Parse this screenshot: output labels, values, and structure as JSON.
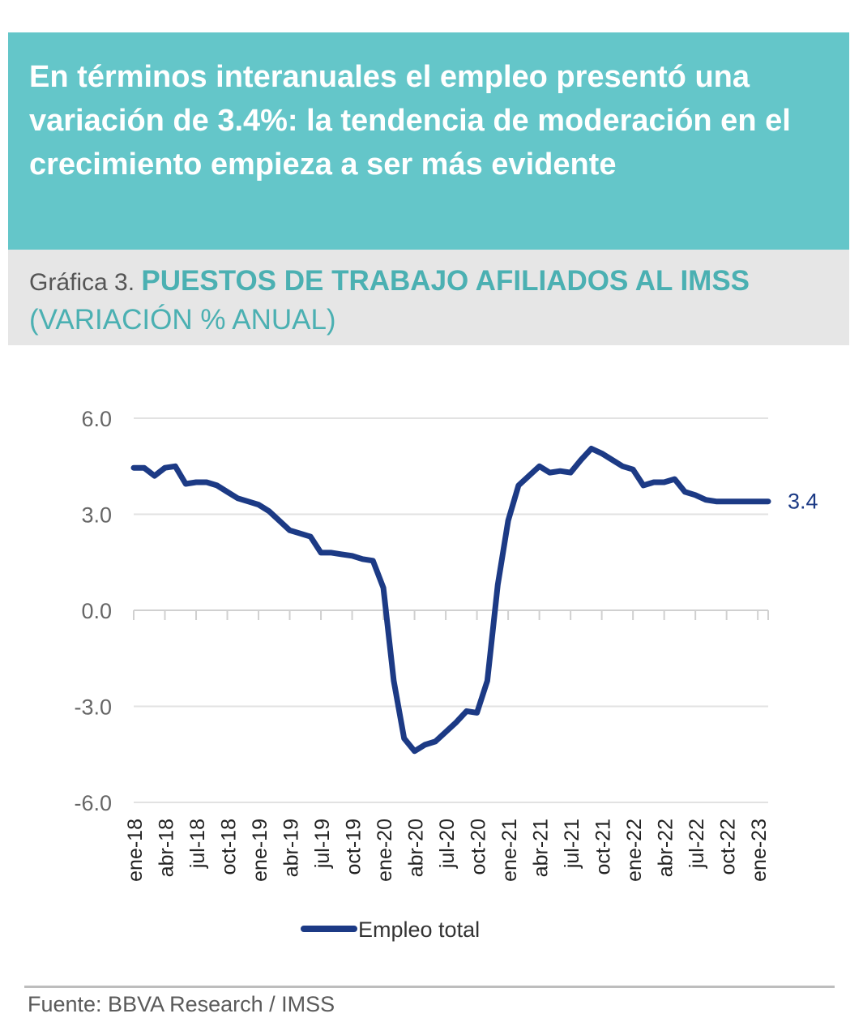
{
  "header": {
    "text": "En términos interanuales el empleo presentó una variación de 3.4%: la tendencia de moderación en el crecimiento empieza a ser más evidente"
  },
  "subtitle": {
    "prefix": "Gráfica 3. ",
    "title": "PUESTOS DE TRABAJO AFILIADOS AL IMSS",
    "suffix": " (VARIACIÓN % ANUAL)"
  },
  "colors": {
    "header_bg": "#64c6c9",
    "subtitle_bg": "#e6e6e6",
    "accent_text": "#4bb0b2",
    "line": "#1c3a85"
  },
  "chart_data": {
    "type": "line",
    "categories": [
      "ene-18",
      "feb-18",
      "mar-18",
      "abr-18",
      "may-18",
      "jun-18",
      "jul-18",
      "ago-18",
      "sep-18",
      "oct-18",
      "nov-18",
      "dic-18",
      "ene-19",
      "feb-19",
      "mar-19",
      "abr-19",
      "may-19",
      "jun-19",
      "jul-19",
      "ago-19",
      "sep-19",
      "oct-19",
      "nov-19",
      "dic-19",
      "ene-20",
      "feb-20",
      "mar-20",
      "abr-20",
      "may-20",
      "jun-20",
      "jul-20",
      "ago-20",
      "sep-20",
      "oct-20",
      "nov-20",
      "dic-20",
      "ene-21",
      "feb-21",
      "mar-21",
      "abr-21",
      "may-21",
      "jun-21",
      "jul-21",
      "ago-21",
      "sep-21",
      "oct-21",
      "nov-21",
      "dic-21",
      "ene-22",
      "feb-22",
      "mar-22",
      "abr-22",
      "may-22",
      "jun-22",
      "jul-22",
      "ago-22",
      "sep-22",
      "oct-22",
      "nov-22",
      "dic-22",
      "ene-23",
      "feb-23"
    ],
    "tick_labels": [
      "ene-18",
      "abr-18",
      "jul-18",
      "oct-18",
      "ene-19",
      "abr-19",
      "jul-19",
      "oct-19",
      "ene-20",
      "abr-20",
      "jul-20",
      "oct-20",
      "ene-21",
      "abr-21",
      "jul-21",
      "oct-21",
      "ene-22",
      "abr-22",
      "jul-22",
      "oct-22",
      "ene-23"
    ],
    "series": [
      {
        "name": "Empleo total",
        "values": [
          4.45,
          4.45,
          4.2,
          4.45,
          4.5,
          3.95,
          4.0,
          4.0,
          3.9,
          3.7,
          3.5,
          3.4,
          3.3,
          3.1,
          2.8,
          2.5,
          2.4,
          2.3,
          1.8,
          1.8,
          1.75,
          1.7,
          1.6,
          1.55,
          0.7,
          -2.2,
          -4.0,
          -4.4,
          -4.2,
          -4.1,
          -3.8,
          -3.5,
          -3.15,
          -3.2,
          -2.2,
          0.8,
          2.8,
          3.9,
          4.2,
          4.5,
          4.3,
          4.35,
          4.3,
          4.7,
          5.05,
          4.9,
          4.7,
          4.5,
          4.4,
          3.9,
          4.0,
          4.0,
          4.1,
          3.7,
          3.6,
          3.45,
          3.4,
          3.4,
          3.4,
          3.4,
          3.4,
          3.4
        ]
      }
    ],
    "end_label": "3.4",
    "yticks": [
      "6.0",
      "3.0",
      "0.0",
      "-3.0",
      "-6.0"
    ],
    "ylim": [
      -6.0,
      6.0
    ],
    "grid": true,
    "legend": "bottom"
  },
  "footer": {
    "source": "Fuente: BBVA Research / IMSS"
  }
}
